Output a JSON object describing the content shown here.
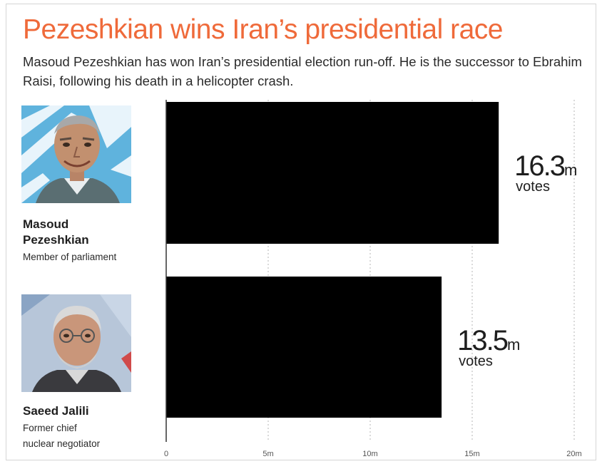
{
  "title": "Pezeshkian wins Iran’s presidential race",
  "subtitle": "Masoud Pezeshkian has won Iran’s presidential election run-off. He is the successor to Ebrahim Raisi, following his death in a helicopter crash.",
  "candidates": [
    {
      "name_line1": "Masoud",
      "name_line2": "Pezeshkian",
      "role_line1": "Member of parliament",
      "role_line2": ""
    },
    {
      "name_line1": "Saeed Jalili",
      "name_line2": "",
      "role_line1": "Former chief",
      "role_line2": "nuclear negotiator"
    }
  ],
  "chart_data": {
    "type": "bar",
    "orientation": "horizontal",
    "categories": [
      "Masoud Pezeshkian",
      "Saeed Jalili"
    ],
    "values": [
      16.3,
      13.5
    ],
    "value_labels": [
      {
        "number": "16.3",
        "unit": "m",
        "suffix": "votes"
      },
      {
        "number": "13.5",
        "unit": "m",
        "suffix": "votes"
      }
    ],
    "xlim": [
      0,
      20
    ],
    "x_ticks": [
      0,
      5,
      10,
      15,
      20
    ],
    "x_tick_labels": [
      "0",
      "5m",
      "10m",
      "15m",
      "20m"
    ],
    "grid": true,
    "bar_color": "#000000"
  },
  "colors": {
    "title": "#ef6a3a",
    "bar": "#000000"
  }
}
